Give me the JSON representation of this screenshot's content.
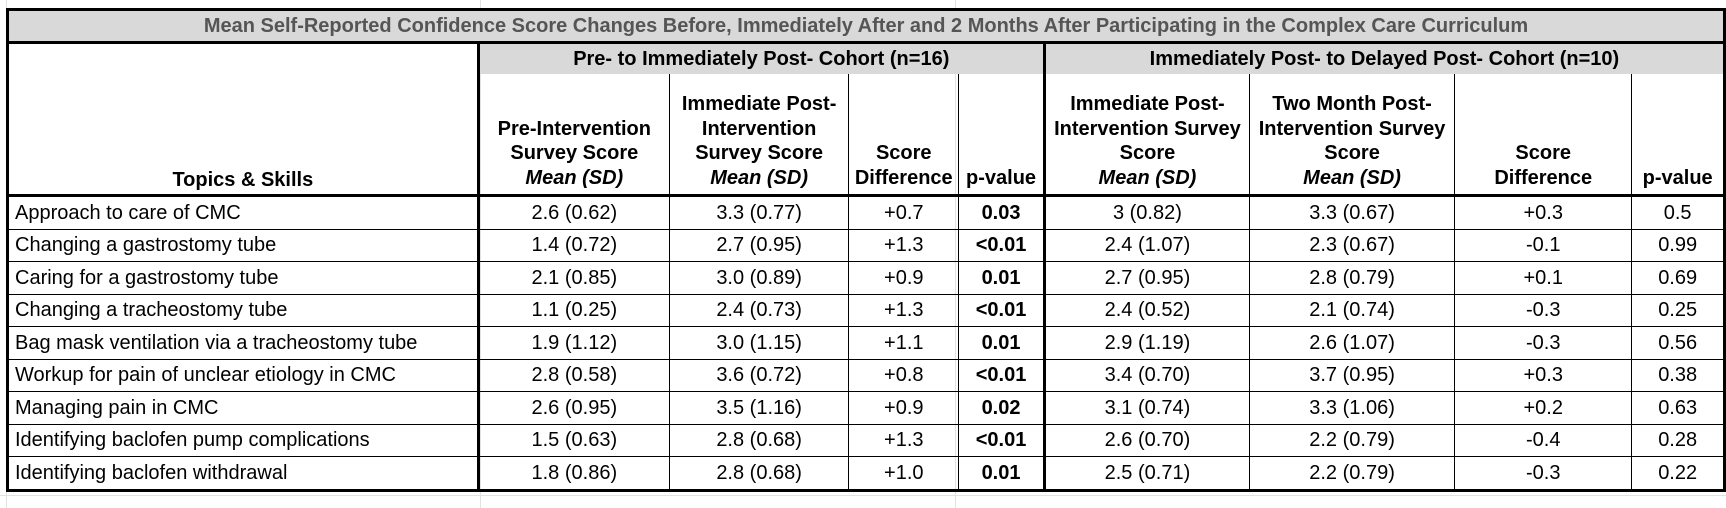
{
  "title": "Mean Self-Reported Confidence Score Changes Before, Immediately After and 2 Months After Participating in the Complex Care Curriculum",
  "cohorts": [
    "Pre- to Immediately Post- Cohort (n=16)",
    "Immediately Post- to Delayed Post- Cohort (n=10)"
  ],
  "topics_header": "Topics & Skills",
  "columns": [
    {
      "line1": "Pre-Intervention",
      "line2": "Survey Score",
      "line3": "Mean (SD)"
    },
    {
      "line0": "Immediate Post-",
      "line1": "Intervention",
      "line2": "Survey Score",
      "line3": "Mean (SD)"
    },
    {
      "line2": "Score",
      "line3": "Difference"
    },
    {
      "line3": "p-value"
    },
    {
      "line0": "Immediate Post-",
      "line1": "Intervention Survey",
      "line2": "Score",
      "line3": "Mean (SD)"
    },
    {
      "line0": "Two Month Post-",
      "line1": "Intervention Survey",
      "line2": "Score",
      "line3": "Mean (SD)"
    },
    {
      "line2": "Score",
      "line3": "Difference"
    },
    {
      "line3": "p-value"
    }
  ],
  "rows": [
    {
      "topic": "Approach to care of CMC",
      "pre": "2.6 (0.62)",
      "post": "3.3 (0.77)",
      "diff1": "+0.7",
      "p1": "0.03",
      "imm": "3 (0.82)",
      "two": "3.3 (0.67)",
      "diff2": "+0.3",
      "p2": "0.5"
    },
    {
      "topic": "Changing a gastrostomy tube",
      "pre": "1.4 (0.72)",
      "post": "2.7 (0.95)",
      "diff1": "+1.3",
      "p1": "<0.01",
      "imm": "2.4 (1.07)",
      "two": "2.3 (0.67)",
      "diff2": "-0.1",
      "p2": "0.99"
    },
    {
      "topic": "Caring for a gastrostomy tube",
      "pre": "2.1 (0.85)",
      "post": "3.0 (0.89)",
      "diff1": "+0.9",
      "p1": "0.01",
      "imm": "2.7 (0.95)",
      "two": "2.8 (0.79)",
      "diff2": "+0.1",
      "p2": "0.69"
    },
    {
      "topic": "Changing a tracheostomy tube",
      "pre": "1.1 (0.25)",
      "post": "2.4 (0.73)",
      "diff1": "+1.3",
      "p1": "<0.01",
      "imm": "2.4 (0.52)",
      "two": "2.1 (0.74)",
      "diff2": "-0.3",
      "p2": "0.25"
    },
    {
      "topic": "Bag mask ventilation via a tracheostomy tube",
      "pre": "1.9 (1.12)",
      "post": "3.0 (1.15)",
      "diff1": "+1.1",
      "p1": "0.01",
      "imm": "2.9 (1.19)",
      "two": "2.6 (1.07)",
      "diff2": "-0.3",
      "p2": "0.56"
    },
    {
      "topic": "Workup for pain of unclear etiology in CMC",
      "pre": "2.8 (0.58)",
      "post": "3.6 (0.72)",
      "diff1": "+0.8",
      "p1": "<0.01",
      "imm": "3.4 (0.70)",
      "two": "3.7 (0.95)",
      "diff2": "+0.3",
      "p2": "0.38"
    },
    {
      "topic": "Managing pain in CMC",
      "pre": "2.6 (0.95)",
      "post": "3.5 (1.16)",
      "diff1": "+0.9",
      "p1": "0.02",
      "imm": "3.1 (0.74)",
      "two": "3.3 (1.06)",
      "diff2": "+0.2",
      "p2": "0.63"
    },
    {
      "topic": "Identifying baclofen pump complications",
      "pre": "1.5 (0.63)",
      "post": "2.8 (0.68)",
      "diff1": "+1.3",
      "p1": "<0.01",
      "imm": "2.6 (0.70)",
      "two": "2.2 (0.79)",
      "diff2": "-0.4",
      "p2": "0.28"
    },
    {
      "topic": "Identifying baclofen withdrawal",
      "pre": "1.8 (0.86)",
      "post": "2.8 (0.68)",
      "diff1": "+1.0",
      "p1": "0.01",
      "imm": "2.5 (0.71)",
      "two": "2.2 (0.79)",
      "diff2": "-0.3",
      "p2": "0.22"
    }
  ]
}
